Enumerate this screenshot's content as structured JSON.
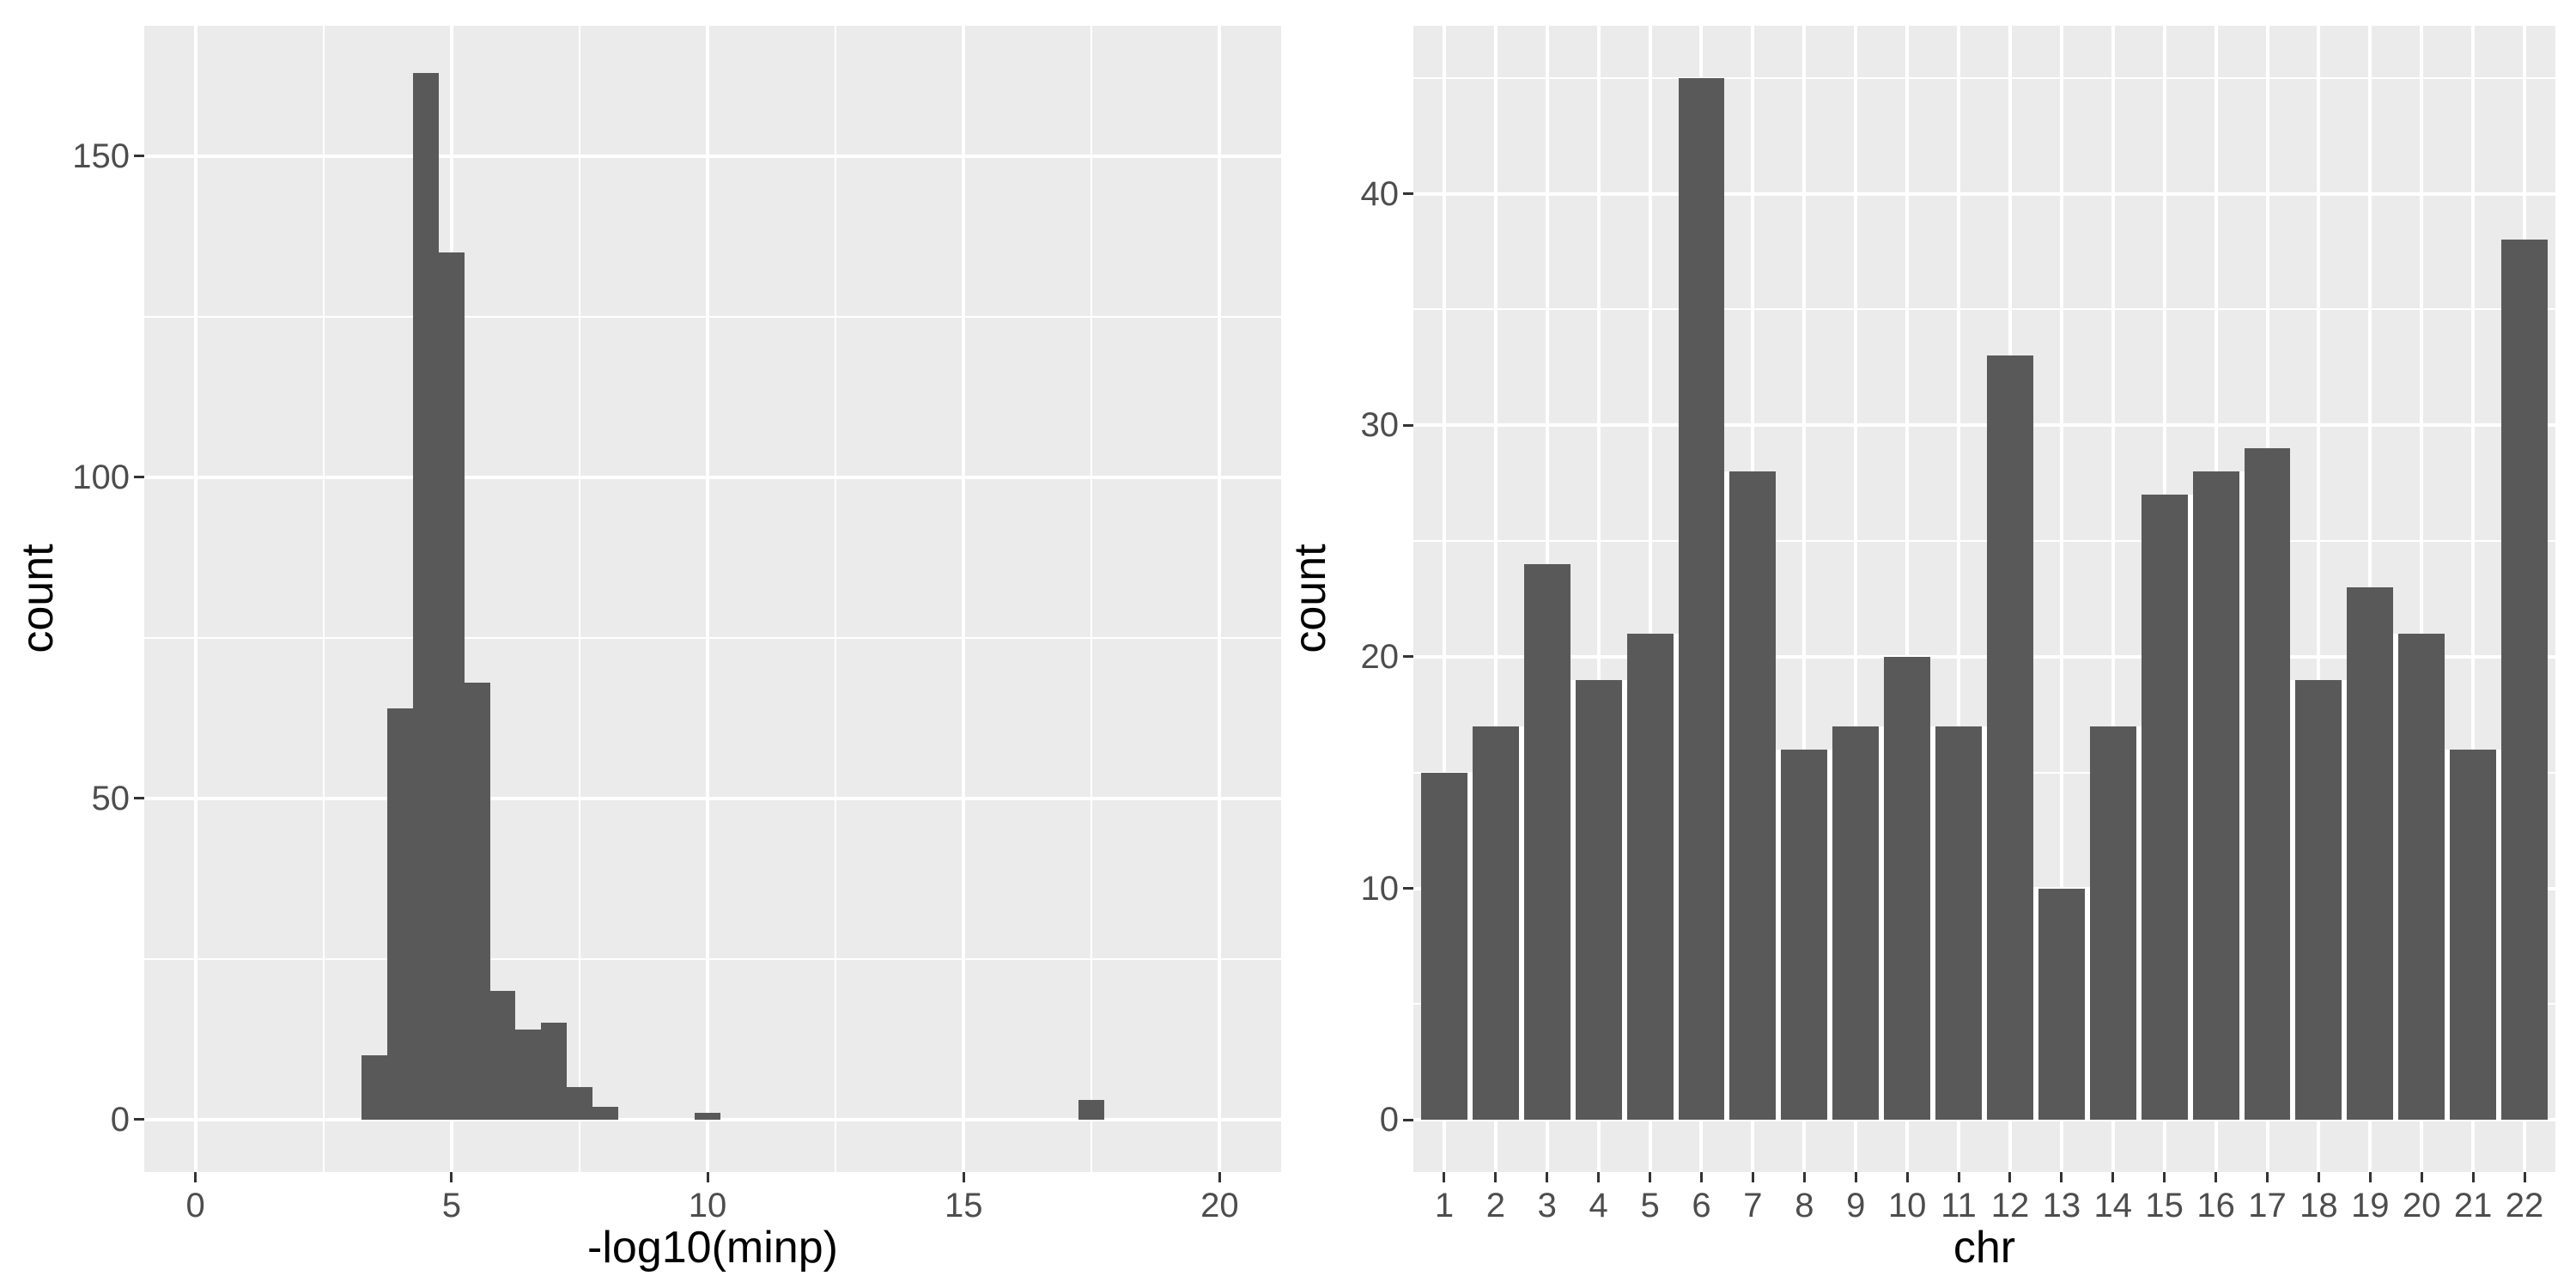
{
  "figure": {
    "background": "#FFFFFF",
    "panel_background": "#EBEBEB",
    "grid_color": "#FFFFFF",
    "bar_fill": "#595959",
    "tick_mark_color": "#333333",
    "tick_label_color": "#4D4D4D",
    "axis_title_color": "#000000"
  },
  "chart_data": [
    {
      "type": "bar",
      "subtype": "histogram",
      "title": "",
      "xlabel": "-log10(minp)",
      "ylabel": "count",
      "xlim": [
        -1.0,
        21.2
      ],
      "ylim": [
        -8.2,
        170.3
      ],
      "x_ticks": [
        0,
        5,
        10,
        15,
        20
      ],
      "x_minor": [
        2.5,
        7.5,
        12.5,
        17.5
      ],
      "y_ticks": [
        0,
        50,
        100,
        150
      ],
      "y_minor": [
        25,
        75,
        125
      ],
      "grid": true,
      "legend": "none",
      "bin_width": 0.5,
      "bins": [
        {
          "x0": 3.25,
          "count": 10
        },
        {
          "x0": 3.75,
          "count": 64
        },
        {
          "x0": 4.25,
          "count": 163
        },
        {
          "x0": 4.75,
          "count": 135
        },
        {
          "x0": 5.25,
          "count": 68
        },
        {
          "x0": 5.75,
          "count": 20
        },
        {
          "x0": 6.25,
          "count": 14
        },
        {
          "x0": 6.75,
          "count": 15
        },
        {
          "x0": 7.25,
          "count": 5
        },
        {
          "x0": 7.75,
          "count": 2
        },
        {
          "x0": 9.75,
          "count": 1
        },
        {
          "x0": 17.25,
          "count": 3
        }
      ]
    },
    {
      "type": "bar",
      "subtype": "categorical",
      "title": "",
      "xlabel": "chr",
      "ylabel": "count",
      "categories": [
        "1",
        "2",
        "3",
        "4",
        "5",
        "6",
        "7",
        "8",
        "9",
        "10",
        "11",
        "12",
        "13",
        "14",
        "15",
        "16",
        "17",
        "18",
        "19",
        "20",
        "21",
        "22"
      ],
      "values": [
        15,
        17,
        24,
        19,
        21,
        45,
        28,
        16,
        17,
        20,
        17,
        33,
        10,
        17,
        27,
        28,
        29,
        19,
        23,
        21,
        16,
        38
      ],
      "xlim": [
        0.4,
        22.6
      ],
      "ylim": [
        -2.25,
        47.25
      ],
      "y_ticks": [
        0,
        10,
        20,
        30,
        40
      ],
      "y_minor": [
        5,
        15,
        25,
        35,
        45
      ],
      "grid": true,
      "legend": "none",
      "bar_rel_width": 0.9
    }
  ]
}
